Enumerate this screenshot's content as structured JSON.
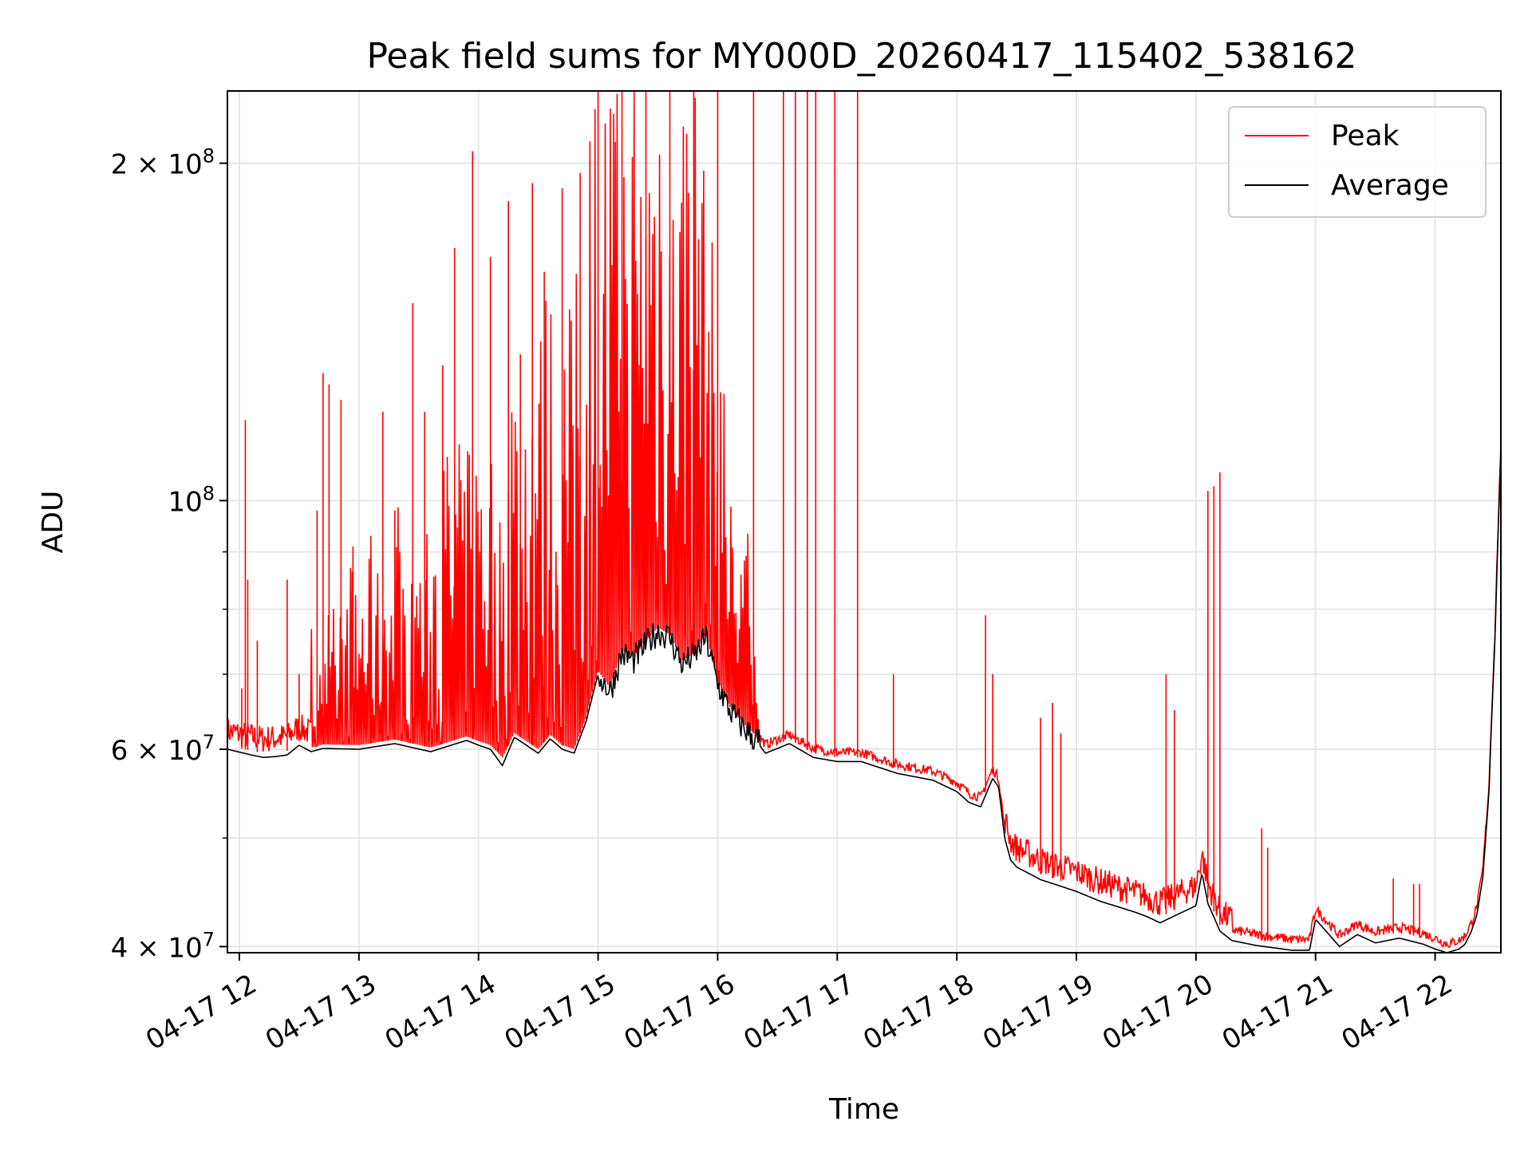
{
  "chart_data": {
    "type": "line",
    "title": "Peak field sums for MY000D_20260417_115402_538162",
    "xlabel": "Time",
    "ylabel": "ADU",
    "yscale": "log",
    "xlim": [
      11.9,
      22.55
    ],
    "ylim": [
      39500000,
      232000000
    ],
    "grid": true,
    "legend_position": "top-right",
    "x_ticks": [
      {
        "value": 12,
        "label": "04-17 12"
      },
      {
        "value": 13,
        "label": "04-17 13"
      },
      {
        "value": 14,
        "label": "04-17 14"
      },
      {
        "value": 15,
        "label": "04-17 15"
      },
      {
        "value": 16,
        "label": "04-17 16"
      },
      {
        "value": 17,
        "label": "04-17 17"
      },
      {
        "value": 18,
        "label": "04-17 18"
      },
      {
        "value": 19,
        "label": "04-17 19"
      },
      {
        "value": 20,
        "label": "04-17 20"
      },
      {
        "value": 21,
        "label": "04-17 21"
      },
      {
        "value": 22,
        "label": "04-17 22"
      }
    ],
    "y_ticks": [
      {
        "value": 40000000,
        "base": "4 × 10",
        "exp": "7"
      },
      {
        "value": 60000000,
        "base": "6 × 10",
        "exp": "7"
      },
      {
        "value": 100000000,
        "base": "10",
        "exp": "8"
      },
      {
        "value": 200000000,
        "base": "2 × 10",
        "exp": "8"
      }
    ],
    "y_minor_ticks": [
      50000000,
      70000000,
      80000000,
      90000000
    ],
    "series": [
      {
        "name": "Peak",
        "color": "#ff0000",
        "dense_region": [
          12.6,
          16.35
        ],
        "spikes": [
          [
            12.02,
            68000000
          ],
          [
            12.05,
            118000000
          ],
          [
            12.07,
            85000000
          ],
          [
            12.15,
            75000000
          ],
          [
            12.4,
            85000000
          ],
          [
            12.5,
            70000000
          ],
          [
            12.65,
            98000000
          ],
          [
            12.7,
            130000000
          ],
          [
            12.75,
            127000000
          ],
          [
            12.85,
            123000000
          ],
          [
            12.95,
            91000000
          ],
          [
            13.1,
            93000000
          ],
          [
            13.2,
            120000000
          ],
          [
            13.3,
            98000000
          ],
          [
            13.45,
            150000000
          ],
          [
            13.55,
            120000000
          ],
          [
            13.7,
            132000000
          ],
          [
            13.8,
            168000000
          ],
          [
            13.95,
            205000000
          ],
          [
            14.1,
            165000000
          ],
          [
            14.25,
            185000000
          ],
          [
            14.35,
            135000000
          ],
          [
            14.45,
            192000000
          ],
          [
            14.55,
            160000000
          ],
          [
            14.7,
            190000000
          ],
          [
            14.85,
            196000000
          ],
          [
            15.0,
            232000000
          ],
          [
            15.2,
            232000000
          ],
          [
            15.4,
            232000000
          ],
          [
            15.6,
            232000000
          ],
          [
            15.8,
            232000000
          ],
          [
            16.0,
            232000000
          ],
          [
            16.3,
            232000000
          ],
          [
            16.55,
            232000000
          ],
          [
            16.65,
            232000000
          ],
          [
            16.75,
            232000000
          ],
          [
            16.82,
            232000000
          ],
          [
            16.98,
            232000000
          ],
          [
            17.17,
            232000000
          ],
          [
            17.47,
            70000000
          ],
          [
            18.24,
            79000000
          ],
          [
            18.3,
            70000000
          ],
          [
            18.7,
            64000000
          ],
          [
            18.8,
            66000000
          ],
          [
            18.87,
            62000000
          ],
          [
            19.75,
            70000000
          ],
          [
            19.82,
            65000000
          ],
          [
            20.1,
            102000000
          ],
          [
            20.15,
            103000000
          ],
          [
            20.2,
            106000000
          ],
          [
            20.55,
            51000000
          ],
          [
            20.6,
            49000000
          ],
          [
            21.65,
            46000000
          ],
          [
            21.82,
            45500000
          ],
          [
            21.87,
            45500000
          ]
        ],
        "baseline_x": [
          11.9,
          12.1,
          12.2,
          12.3,
          12.4,
          12.5,
          12.6,
          12.7,
          13.0,
          13.3,
          13.6,
          13.9,
          14.0,
          14.1,
          14.2,
          14.3,
          14.4,
          14.5,
          14.6,
          14.7,
          14.8,
          14.9,
          15.0,
          15.1,
          15.2,
          15.3,
          15.4,
          15.5,
          15.6,
          15.7,
          15.8,
          15.9,
          16.0,
          16.1,
          16.2,
          16.3,
          16.4,
          16.6,
          16.8,
          17.0,
          17.2,
          17.5,
          17.8,
          18.0,
          18.1,
          18.2,
          18.3,
          18.35,
          18.4,
          18.45,
          18.5,
          18.7,
          19.0,
          19.2,
          19.5,
          19.6,
          19.7,
          19.8,
          19.9,
          20.0,
          20.05,
          20.1,
          20.2,
          20.3,
          20.5,
          20.8,
          20.95,
          21.0,
          21.2,
          21.35,
          21.5,
          21.7,
          21.9,
          22.0,
          22.1,
          22.2,
          22.25,
          22.3,
          22.35,
          22.4,
          22.45,
          22.5,
          22.55
        ],
        "baseline_y": [
          60500000,
          59800000,
          59500000,
          59600000,
          59800000,
          61000000,
          60200000,
          60600000,
          60500000,
          61200000,
          60200000,
          61600000,
          61000000,
          60500000,
          59000000,
          62000000,
          61000000,
          60000000,
          61800000,
          60500000,
          60000000,
          64000000,
          70500000,
          68000000,
          73500000,
          72500000,
          75000000,
          77000000,
          76000000,
          72000000,
          73000000,
          76000000,
          69000000,
          65500000,
          63500000,
          62000000,
          60000000,
          61200000,
          59500000,
          59000000,
          59000000,
          57600000,
          56800000,
          55500000,
          54300000,
          53800000,
          57000000,
          56000000,
          50500000,
          48300000,
          47600000,
          46400000,
          45300000,
          44400000,
          43400000,
          43000000,
          42500000,
          43000000,
          43500000,
          44000000,
          47000000,
          44200000,
          41800000,
          41000000,
          40600000,
          40200000,
          40200000,
          42800000,
          40500000,
          41500000,
          40800000,
          41200000,
          40700000,
          40300000,
          39800000,
          40100000,
          40500000,
          41500000,
          43000000,
          46500000,
          55000000,
          75000000,
          110000000
        ]
      },
      {
        "name": "Average",
        "color": "#000000",
        "x": [
          11.9,
          12.1,
          12.2,
          12.3,
          12.4,
          12.5,
          12.6,
          12.7,
          13.0,
          13.3,
          13.6,
          13.9,
          14.0,
          14.1,
          14.2,
          14.3,
          14.4,
          14.5,
          14.6,
          14.7,
          14.8,
          14.9,
          15.0,
          15.1,
          15.2,
          15.3,
          15.4,
          15.5,
          15.6,
          15.7,
          15.8,
          15.9,
          16.0,
          16.1,
          16.2,
          16.3,
          16.4,
          16.6,
          16.8,
          17.0,
          17.2,
          17.5,
          17.8,
          18.0,
          18.1,
          18.2,
          18.3,
          18.35,
          18.4,
          18.45,
          18.5,
          18.7,
          19.0,
          19.2,
          19.5,
          19.6,
          19.7,
          19.8,
          19.9,
          20.0,
          20.05,
          20.1,
          20.2,
          20.3,
          20.5,
          20.8,
          20.95,
          21.0,
          21.2,
          21.35,
          21.5,
          21.7,
          21.9,
          22.0,
          22.1,
          22.2,
          22.25,
          22.3,
          22.35,
          22.4,
          22.45,
          22.5,
          22.55
        ],
        "y": [
          60000000,
          59300000,
          59000000,
          59100000,
          59300000,
          60500000,
          59700000,
          60100000,
          60000000,
          60700000,
          59700000,
          61100000,
          60500000,
          60000000,
          58000000,
          61500000,
          60500000,
          59500000,
          61300000,
          60000000,
          59500000,
          63500000,
          70000000,
          67500000,
          73000000,
          72000000,
          74500000,
          76500000,
          75500000,
          71500000,
          72500000,
          75500000,
          68500000,
          65000000,
          63000000,
          61500000,
          59500000,
          60700000,
          59000000,
          58500000,
          58500000,
          57100000,
          56300000,
          55000000,
          53800000,
          53300000,
          56500000,
          55500000,
          50000000,
          47800000,
          47100000,
          45900000,
          44800000,
          43900000,
          42900000,
          42500000,
          42000000,
          42500000,
          43000000,
          43500000,
          46500000,
          43700000,
          41300000,
          40500000,
          40100000,
          39700000,
          39700000,
          42300000,
          40000000,
          41000000,
          40300000,
          40700000,
          40200000,
          39800000,
          39500000,
          39800000,
          40200000,
          41200000,
          42700000,
          46200000,
          54700000,
          74700000,
          109700000
        ]
      }
    ]
  }
}
